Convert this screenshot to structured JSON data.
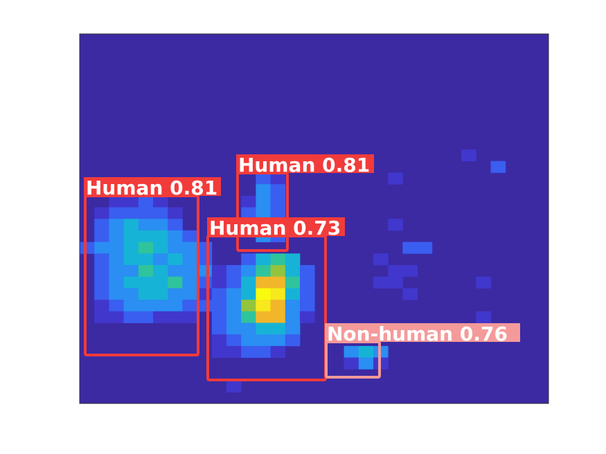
{
  "image": {
    "kind": "thermal heatmap with object detections",
    "background_color": "#3c2aa3",
    "frame_color": "#333333"
  },
  "detections": [
    {
      "label": "Human 0.81",
      "class": "Human",
      "confidence": 0.81,
      "color": "#f23b3b",
      "text_color": "#ffffff"
    },
    {
      "label": "Human 0.81",
      "class": "Human",
      "confidence": 0.81,
      "color": "#f23b3b",
      "text_color": "#ffffff"
    },
    {
      "label": "Human 0.73",
      "class": "Human",
      "confidence": 0.73,
      "color": "#f23b3b",
      "text_color": "#ffffff"
    },
    {
      "label": "Non-human 0.76",
      "class": "Non-human",
      "confidence": 0.76,
      "color": "#f59a9a",
      "text_color": "#ffffff"
    }
  ],
  "colormap": [
    "#3c2aa3",
    "#4137cc",
    "#3a5ef0",
    "#2a8ef2",
    "#17b3d6",
    "#2fc49c",
    "#93c43e",
    "#f2b62b",
    "#f7e91c",
    "#f9fb0e"
  ]
}
